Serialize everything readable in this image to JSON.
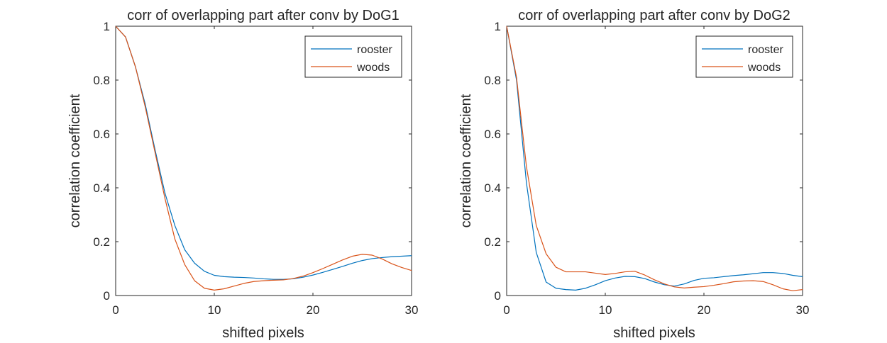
{
  "colors": {
    "rooster": "#0072BD",
    "woods": "#D95319",
    "axis": "#262626",
    "background": "#ffffff"
  },
  "chart_data": [
    {
      "type": "line",
      "title": "corr of overlapping part after conv by DoG1",
      "xlabel": "shifted pixels",
      "ylabel": "correlation coefficient",
      "xlim": [
        0,
        30
      ],
      "ylim": [
        0,
        1
      ],
      "xticks": [
        0,
        10,
        20,
        30
      ],
      "yticks": [
        0,
        0.2,
        0.4,
        0.6,
        0.8,
        1
      ],
      "xtick_labels": [
        "0",
        "10",
        "20",
        "30"
      ],
      "ytick_labels": [
        "0",
        "0.2",
        "0.4",
        "0.6",
        "0.8",
        "1"
      ],
      "grid": false,
      "legend_position": "top-right",
      "x": [
        0,
        1,
        2,
        3,
        4,
        5,
        6,
        7,
        8,
        9,
        10,
        11,
        12,
        13,
        14,
        15,
        16,
        17,
        18,
        19,
        20,
        21,
        22,
        23,
        24,
        25,
        26,
        27,
        28,
        29,
        30
      ],
      "series": [
        {
          "name": "rooster",
          "color": "#0072BD",
          "values": [
            1.0,
            0.96,
            0.85,
            0.71,
            0.54,
            0.38,
            0.26,
            0.17,
            0.12,
            0.09,
            0.075,
            0.07,
            0.068,
            0.067,
            0.065,
            0.062,
            0.06,
            0.06,
            0.062,
            0.068,
            0.076,
            0.086,
            0.097,
            0.108,
            0.12,
            0.13,
            0.137,
            0.141,
            0.144,
            0.146,
            0.148
          ]
        },
        {
          "name": "woods",
          "color": "#D95319",
          "values": [
            1.0,
            0.96,
            0.85,
            0.7,
            0.53,
            0.36,
            0.21,
            0.115,
            0.055,
            0.027,
            0.02,
            0.025,
            0.035,
            0.045,
            0.052,
            0.055,
            0.057,
            0.058,
            0.063,
            0.072,
            0.085,
            0.1,
            0.116,
            0.132,
            0.146,
            0.153,
            0.15,
            0.136,
            0.118,
            0.104,
            0.093
          ]
        }
      ]
    },
    {
      "type": "line",
      "title": "corr of overlapping part after conv by DoG2",
      "xlabel": "shifted pixels",
      "ylabel": "correlation coefficient",
      "xlim": [
        0,
        30
      ],
      "ylim": [
        0,
        1
      ],
      "xticks": [
        0,
        10,
        20,
        30
      ],
      "yticks": [
        0,
        0.2,
        0.4,
        0.6,
        0.8,
        1
      ],
      "xtick_labels": [
        "0",
        "10",
        "20",
        "30"
      ],
      "ytick_labels": [
        "0",
        "0.2",
        "0.4",
        "0.6",
        "0.8",
        "1"
      ],
      "grid": false,
      "legend_position": "top-right",
      "x": [
        0,
        1,
        2,
        3,
        4,
        5,
        6,
        7,
        8,
        9,
        10,
        11,
        12,
        13,
        14,
        15,
        16,
        17,
        18,
        19,
        20,
        21,
        22,
        23,
        24,
        25,
        26,
        27,
        28,
        29,
        30
      ],
      "series": [
        {
          "name": "rooster",
          "color": "#0072BD",
          "values": [
            1.0,
            0.8,
            0.42,
            0.16,
            0.05,
            0.027,
            0.022,
            0.02,
            0.027,
            0.04,
            0.055,
            0.065,
            0.071,
            0.07,
            0.063,
            0.05,
            0.04,
            0.035,
            0.043,
            0.056,
            0.064,
            0.066,
            0.07,
            0.074,
            0.077,
            0.081,
            0.085,
            0.085,
            0.082,
            0.075,
            0.07
          ]
        },
        {
          "name": "woods",
          "color": "#D95319",
          "values": [
            1.0,
            0.81,
            0.48,
            0.26,
            0.155,
            0.105,
            0.088,
            0.088,
            0.088,
            0.083,
            0.078,
            0.082,
            0.088,
            0.09,
            0.076,
            0.058,
            0.043,
            0.032,
            0.028,
            0.031,
            0.033,
            0.038,
            0.044,
            0.051,
            0.054,
            0.055,
            0.052,
            0.04,
            0.025,
            0.018,
            0.022
          ]
        }
      ]
    }
  ]
}
